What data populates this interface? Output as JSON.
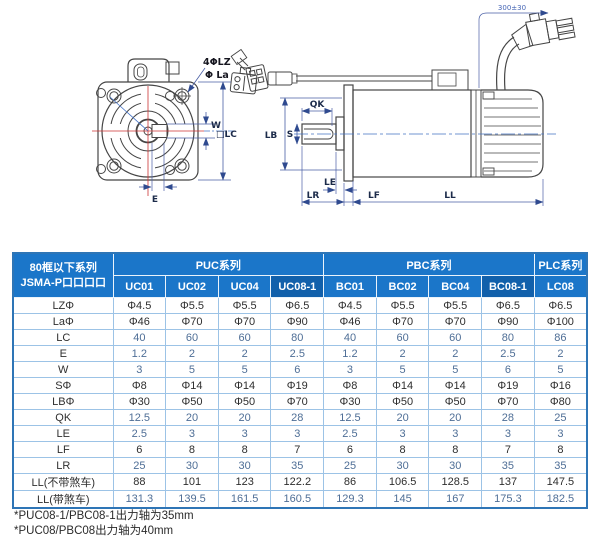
{
  "drawing": {
    "labels": {
      "lz4": "4ΦLZ",
      "la": "Φ La",
      "w": "W",
      "lc": "□LC",
      "e": "E",
      "qk": "QK",
      "s": "S",
      "lb": "LB",
      "le": "LE",
      "lr": "LR",
      "lf": "LF",
      "ll": "LL",
      "cable_len": "300±30"
    }
  },
  "table": {
    "corner": [
      "80框以下系列",
      "JSMA-P口口口口"
    ],
    "groups": [
      {
        "label": "PUC系列",
        "span": 4
      },
      {
        "label": "PBC系列",
        "span": 4
      },
      {
        "label": "PLC系列",
        "span": 1
      }
    ],
    "columns": [
      {
        "label": "UC01",
        "dark": false
      },
      {
        "label": "UC02",
        "dark": false
      },
      {
        "label": "UC04",
        "dark": false
      },
      {
        "label": "UC08-1",
        "dark": true
      },
      {
        "label": "BC01",
        "dark": false
      },
      {
        "label": "BC02",
        "dark": false
      },
      {
        "label": "BC04",
        "dark": false
      },
      {
        "label": "BC08-1",
        "dark": true
      },
      {
        "label": "LC08",
        "dark": false
      }
    ],
    "rows": [
      {
        "label": "LZΦ",
        "tone": "dark",
        "values": [
          "Φ4.5",
          "Φ5.5",
          "Φ5.5",
          "Φ6.5",
          "Φ4.5",
          "Φ5.5",
          "Φ5.5",
          "Φ6.5",
          "Φ6.5"
        ]
      },
      {
        "label": "LaΦ",
        "tone": "dark",
        "values": [
          "Φ46",
          "Φ70",
          "Φ70",
          "Φ90",
          "Φ46",
          "Φ70",
          "Φ70",
          "Φ90",
          "Φ100"
        ]
      },
      {
        "label": "LC",
        "tone": "soft",
        "values": [
          "40",
          "60",
          "60",
          "80",
          "40",
          "60",
          "60",
          "80",
          "86"
        ]
      },
      {
        "label": "E",
        "tone": "soft",
        "values": [
          "1.2",
          "2",
          "2",
          "2.5",
          "1.2",
          "2",
          "2",
          "2.5",
          "2"
        ]
      },
      {
        "label": "W",
        "tone": "soft",
        "values": [
          "3",
          "5",
          "5",
          "6",
          "3",
          "5",
          "5",
          "6",
          "5"
        ]
      },
      {
        "label": "SΦ",
        "tone": "dark",
        "values": [
          "Φ8",
          "Φ14",
          "Φ14",
          "Φ19",
          "Φ8",
          "Φ14",
          "Φ14",
          "Φ19",
          "Φ16"
        ]
      },
      {
        "label": "LBΦ",
        "tone": "dark",
        "values": [
          "Φ30",
          "Φ50",
          "Φ50",
          "Φ70",
          "Φ30",
          "Φ50",
          "Φ50",
          "Φ70",
          "Φ80"
        ]
      },
      {
        "label": "QK",
        "tone": "soft",
        "values": [
          "12.5",
          "20",
          "20",
          "28",
          "12.5",
          "20",
          "20",
          "28",
          "25"
        ]
      },
      {
        "label": "LE",
        "tone": "soft",
        "values": [
          "2.5",
          "3",
          "3",
          "3",
          "2.5",
          "3",
          "3",
          "3",
          "3"
        ]
      },
      {
        "label": "LF",
        "tone": "dark",
        "values": [
          "6",
          "8",
          "8",
          "7",
          "6",
          "8",
          "8",
          "7",
          "8"
        ]
      },
      {
        "label": "LR",
        "tone": "soft",
        "values": [
          "25",
          "30",
          "30",
          "35",
          "25",
          "30",
          "30",
          "35",
          "35"
        ]
      },
      {
        "label": "LL(不带煞车)",
        "tone": "dark",
        "values": [
          "88",
          "101",
          "123",
          "122.2",
          "86",
          "106.5",
          "128.5",
          "137",
          "147.5"
        ]
      },
      {
        "label": "LL(带煞车)",
        "tone": "soft",
        "values": [
          "131.3",
          "139.5",
          "161.5",
          "160.5",
          "129.3",
          "145",
          "167",
          "175.3",
          "182.5"
        ]
      }
    ]
  },
  "footnotes": [
    "*PUC08-1/PBC08-1出力轴为35mm",
    "*PUC08/PBC08出力轴为40mm"
  ],
  "colors": {
    "header_blue": "#1b76c9",
    "header_dark_blue": "#1160ab",
    "table_border": "#2e75b6",
    "grid_line": "#9cc3e6",
    "dimension_blue": "#4a5fa5",
    "centerline_red": "#cc3333",
    "value_soft": "#4e6e96"
  }
}
